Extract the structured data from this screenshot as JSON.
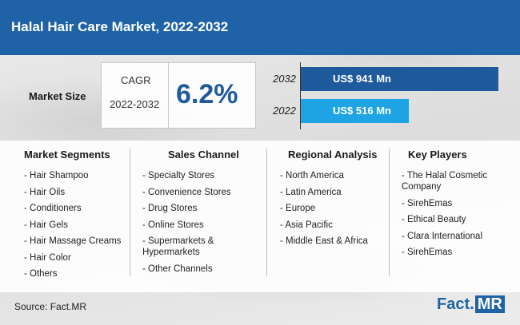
{
  "title": "Halal Hair Care Market, 2022-2032",
  "market_size_label": "Market Size",
  "cagr": {
    "label": "CAGR",
    "years": "2022-2032",
    "value": "6.2%"
  },
  "chart_data": {
    "type": "bar",
    "orientation": "horizontal",
    "categories": [
      "2032",
      "2022"
    ],
    "values": [
      941,
      516
    ],
    "data_labels": [
      "US$ 941 Mn",
      "US$ 516 Mn"
    ],
    "xlim": [
      0,
      1000
    ],
    "colors": [
      "#1f5a9c",
      "#1ea3e4"
    ],
    "grid": false
  },
  "columns": [
    {
      "heading": "Market Segments",
      "items": [
        "- Hair Shampoo",
        "- Hair Oils",
        "- Conditioners",
        "- Hair Gels",
        "- Hair Massage Creams",
        "- Hair Color",
        "- Others"
      ]
    },
    {
      "heading": "Sales Channel",
      "items": [
        "- Specialty Stores",
        "- Convenience Stores",
        "- Drug Stores",
        "- Online Stores",
        "- Supermarkets & Hypermarkets",
        "- Other Channels"
      ]
    },
    {
      "heading": "Regional Analysis",
      "items": [
        "- North America",
        "- Latin America",
        "- Europe",
        "- Asia Pacific",
        "- Middle East & Africa"
      ]
    },
    {
      "heading": "Key Players",
      "items": [
        "- The Halal Cosmetic Company",
        "- SirehEmas",
        "- Ethical Beauty",
        "- Clara International",
        "- SirehEmas"
      ]
    }
  ],
  "source": "Source: Fact.MR",
  "logo": {
    "part1": "Fact",
    "dot": ".",
    "part2": "MR"
  }
}
